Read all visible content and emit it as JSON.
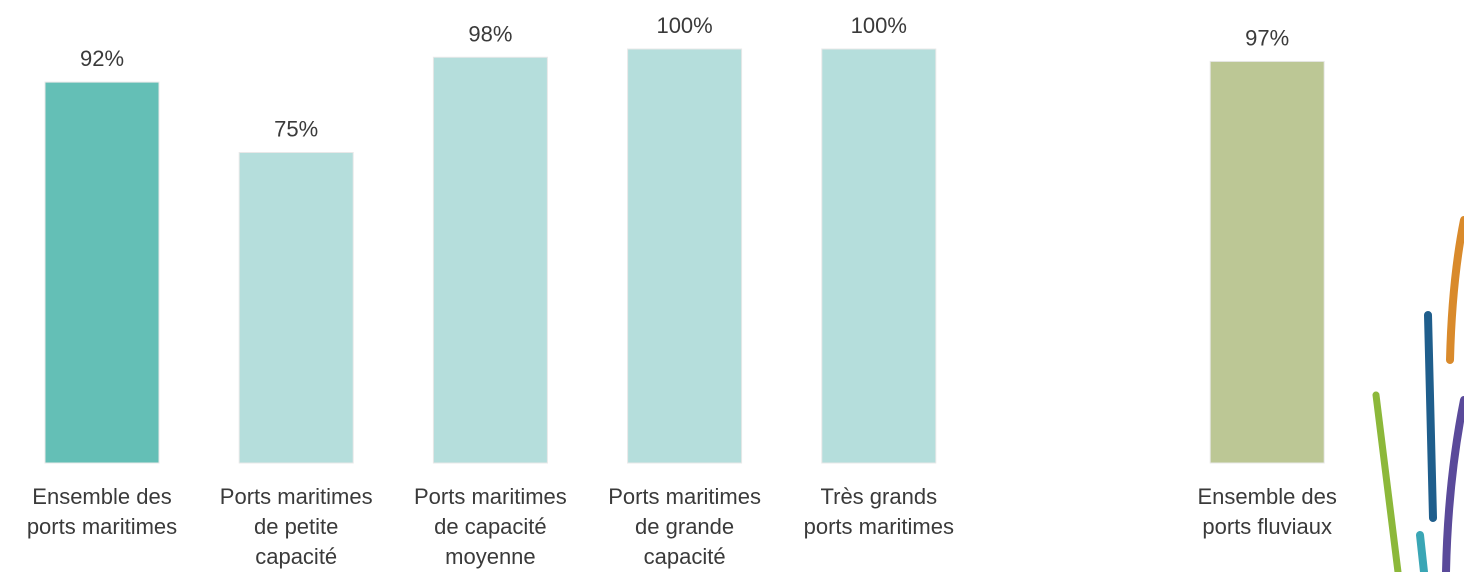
{
  "chart_data": {
    "type": "bar",
    "categories": [
      [
        "Ensemble des",
        "ports maritimes"
      ],
      [
        "Ports maritimes",
        "de petite",
        "capacité"
      ],
      [
        "Ports maritimes",
        "de capacité",
        "moyenne"
      ],
      [
        "Ports maritimes",
        "de grande",
        "capacité"
      ],
      [
        "Très grands",
        "ports maritimes"
      ],
      null,
      [
        "Ensemble des",
        "ports fluviaux"
      ]
    ],
    "values": [
      92,
      75,
      98,
      100,
      100,
      null,
      97
    ],
    "value_labels": [
      "92%",
      "75%",
      "98%",
      "100%",
      "100%",
      null,
      "97%"
    ],
    "colors": [
      "#64bfb6",
      "#b5dedc",
      "#b5dedc",
      "#b5dedc",
      "#b5dedc",
      null,
      "#bcc795"
    ]
  }
}
